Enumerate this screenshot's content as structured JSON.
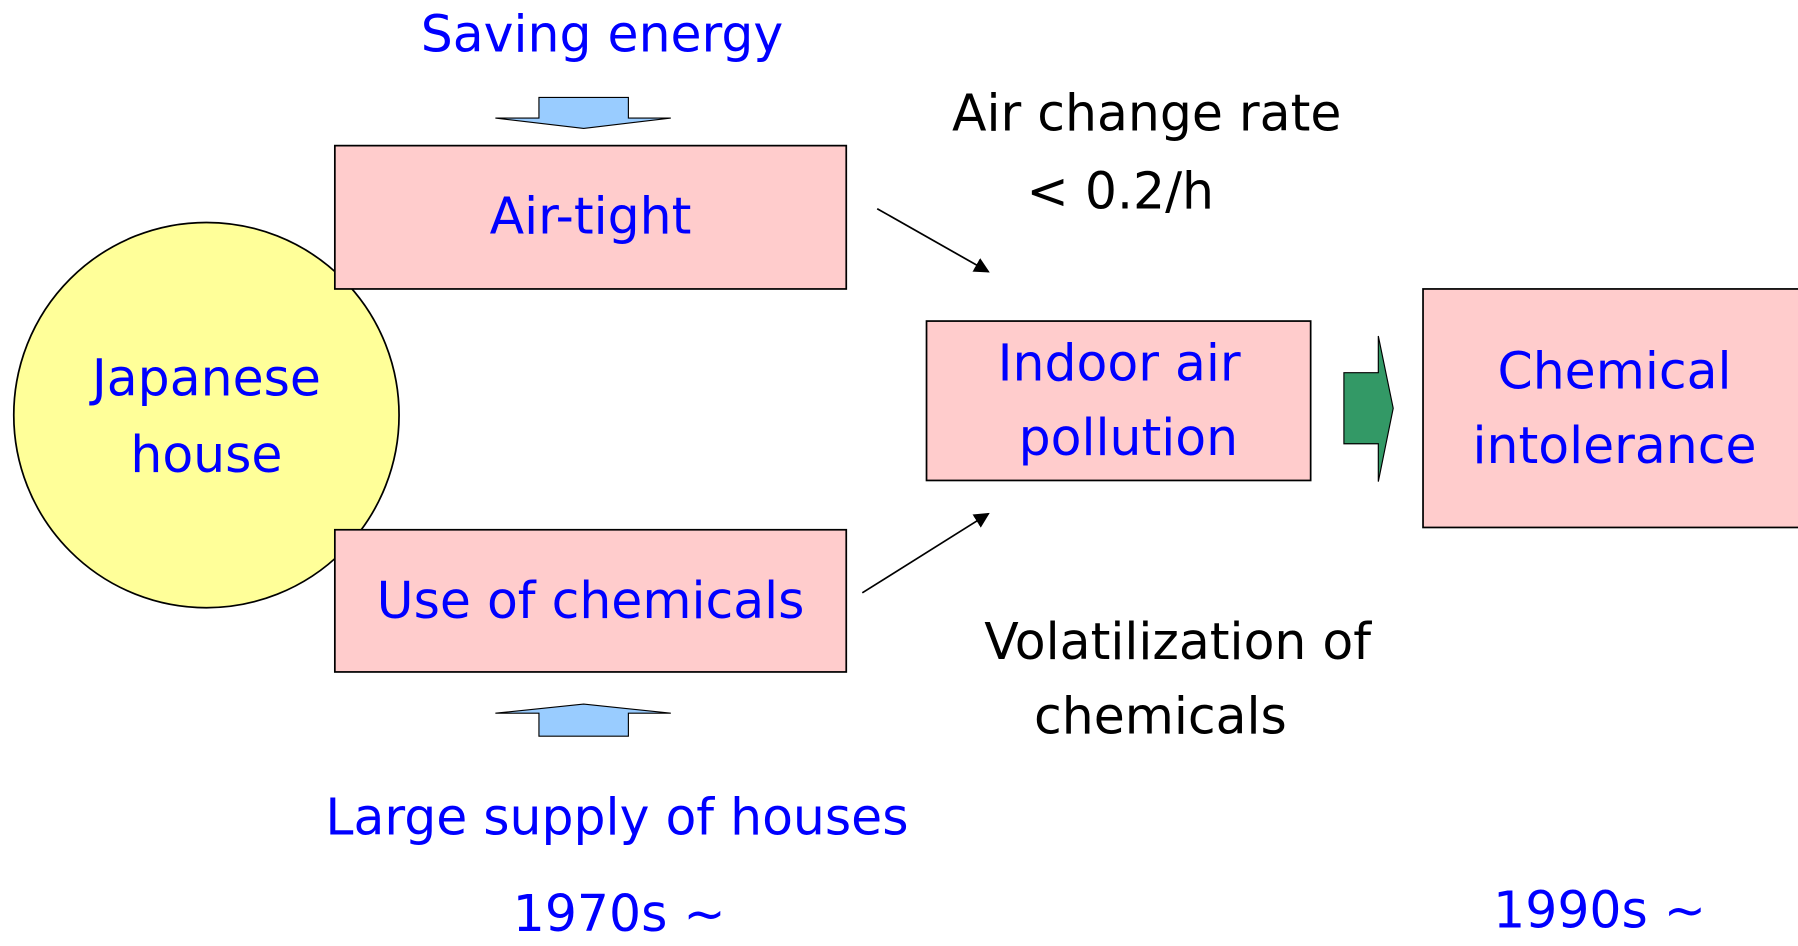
{
  "saving_energy": "Saving energy",
  "air_tight": "Air-tight",
  "use_of_chemicals": "Use of chemicals",
  "house": [
    "Japanese",
    "house"
  ],
  "air_change_rate": [
    "Air change rate",
    "< 0.2/h"
  ],
  "indoor_air_pollution": [
    "Indoor air",
    "pollution"
  ],
  "chemical_intolerance": [
    "Chemical",
    "intolerance"
  ],
  "volatilization": [
    "Volatilization of",
    "chemicals"
  ],
  "large_supply": "Large supply of houses",
  "period_1970s": "1970s ~",
  "period_1990s": "1990s ~"
}
